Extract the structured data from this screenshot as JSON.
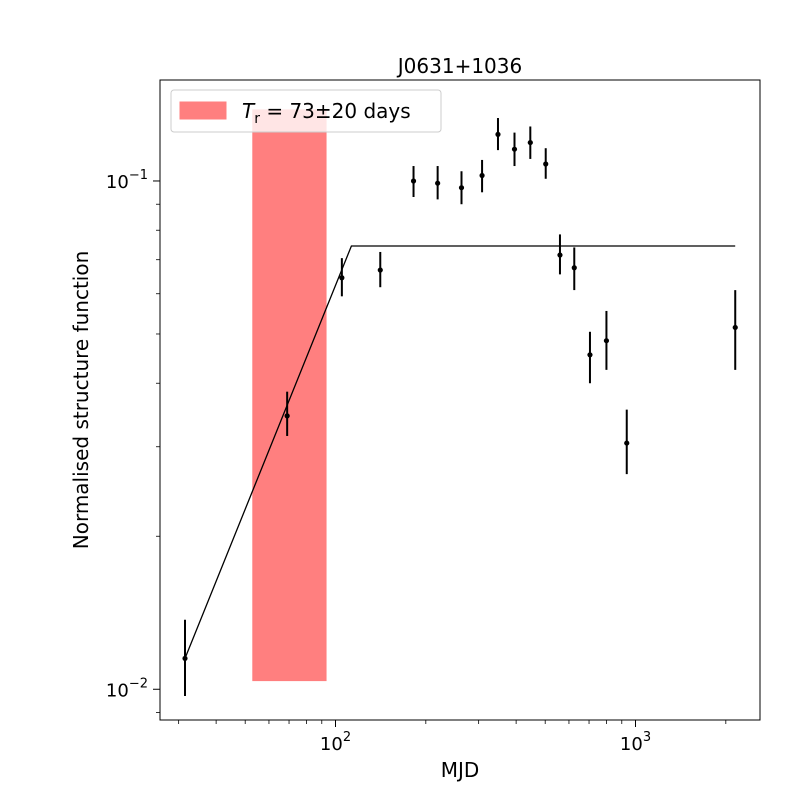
{
  "chart_data": {
    "type": "scatter",
    "title": "J0631+1036",
    "xlabel": "MJD",
    "ylabel": "Normalised structure function",
    "xscale": "log",
    "yscale": "log",
    "xlim": [
      26,
      2600
    ],
    "ylim": [
      0.0087,
      0.158
    ],
    "x_ticks": [
      {
        "value": 100,
        "base": "10",
        "exp": "2"
      },
      {
        "value": 1000,
        "base": "10",
        "exp": "3"
      }
    ],
    "y_ticks": [
      {
        "value": 0.01,
        "base": "10",
        "exp": "−2"
      },
      {
        "value": 0.1,
        "base": "10",
        "exp": "−1"
      }
    ],
    "points": [
      {
        "x": 31.5,
        "y": 0.0115,
        "ylo": 0.0097,
        "yhi": 0.0137
      },
      {
        "x": 69,
        "y": 0.0345,
        "ylo": 0.0315,
        "yhi": 0.0385
      },
      {
        "x": 105,
        "y": 0.0645,
        "ylo": 0.0593,
        "yhi": 0.0705
      },
      {
        "x": 141,
        "y": 0.0668,
        "ylo": 0.0618,
        "yhi": 0.0725
      },
      {
        "x": 182,
        "y": 0.1,
        "ylo": 0.093,
        "yhi": 0.107
      },
      {
        "x": 219,
        "y": 0.099,
        "ylo": 0.092,
        "yhi": 0.107
      },
      {
        "x": 263,
        "y": 0.097,
        "ylo": 0.09,
        "yhi": 0.1045
      },
      {
        "x": 308,
        "y": 0.1025,
        "ylo": 0.095,
        "yhi": 0.11
      },
      {
        "x": 348,
        "y": 0.1235,
        "ylo": 0.115,
        "yhi": 0.133
      },
      {
        "x": 395,
        "y": 0.1155,
        "ylo": 0.107,
        "yhi": 0.1245
      },
      {
        "x": 446,
        "y": 0.119,
        "ylo": 0.1105,
        "yhi": 0.128
      },
      {
        "x": 502,
        "y": 0.108,
        "ylo": 0.101,
        "yhi": 0.116
      },
      {
        "x": 560,
        "y": 0.0715,
        "ylo": 0.0655,
        "yhi": 0.0785
      },
      {
        "x": 625,
        "y": 0.0675,
        "ylo": 0.061,
        "yhi": 0.074
      },
      {
        "x": 705,
        "y": 0.0455,
        "ylo": 0.04,
        "yhi": 0.0505
      },
      {
        "x": 800,
        "y": 0.0485,
        "ylo": 0.0425,
        "yhi": 0.0555
      },
      {
        "x": 935,
        "y": 0.0305,
        "ylo": 0.0265,
        "yhi": 0.0355
      },
      {
        "x": 2150,
        "y": 0.0515,
        "ylo": 0.0425,
        "yhi": 0.061
      }
    ],
    "model_line": [
      [
        31.5,
        0.0115
      ],
      [
        113,
        0.0745
      ],
      [
        2150,
        0.0745
      ]
    ],
    "shaded_band": {
      "x0": 53,
      "x1": 93,
      "y0": 0.0104,
      "y1": 0.138,
      "color": "#ff7f7f"
    },
    "legend": {
      "placement": "upper-left",
      "entry_main": "T",
      "entry_sub": "r",
      "entry_rest": " = 73±20 days"
    }
  }
}
